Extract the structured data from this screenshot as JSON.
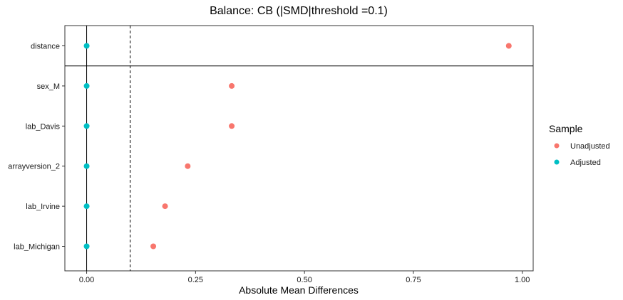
{
  "chart_data": {
    "type": "scatter",
    "title": "Balance: CB (|SMD|threshold =0.1)",
    "xlabel": "Absolute Mean Differences",
    "ylabel": "",
    "xlim": [
      -0.05,
      1.025
    ],
    "x_ticks": [
      0,
      0.25,
      0.5,
      0.75,
      1
    ],
    "x_tick_labels": [
      "0.00",
      "0.25",
      "0.50",
      "0.75",
      "1.00"
    ],
    "categories": [
      "distance",
      "sex_M",
      "lab_Davis",
      "arrayversion_2",
      "lab_Irvine",
      "lab_Michigan"
    ],
    "threshold": 0.1,
    "reference_line": 0,
    "grid": false,
    "legend": {
      "title": "Sample",
      "position": "right"
    },
    "series": [
      {
        "name": "Unadjusted",
        "color": "#F8766D",
        "values": [
          0.969,
          0.333,
          0.333,
          0.232,
          0.18,
          0.153
        ]
      },
      {
        "name": "Adjusted",
        "color": "#00BFC4",
        "values": [
          0.0,
          0.0,
          0.0,
          0.0,
          0.0,
          0.0
        ]
      }
    ]
  }
}
